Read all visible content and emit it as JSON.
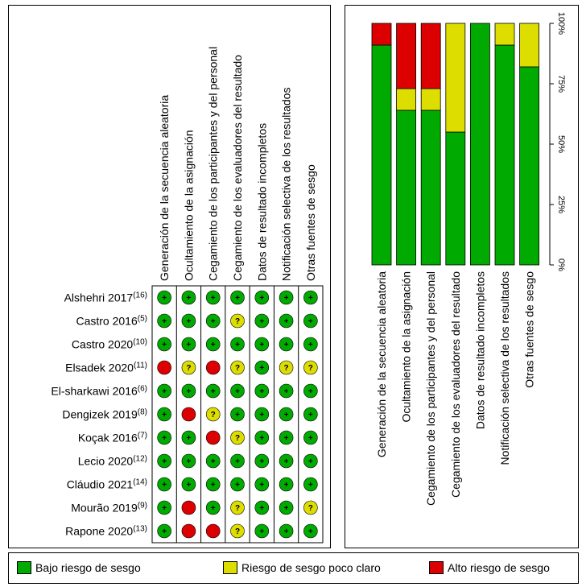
{
  "chart_data": [
    {
      "type": "table",
      "columns": [
        "Generación de la secuencia aleatoria",
        "Ocultamiento de la asignación",
        "Cegamiento de los participantes y del personal",
        "Cegamiento de los evaluadores del resultado",
        "Datos de resultado incompletos",
        "Notificación selectiva de los resultados",
        "Otras fuentes de sesgo"
      ],
      "rows": [
        {
          "study": "Alshehri 2017",
          "ref": "(16)",
          "ratings": [
            "low",
            "low",
            "low",
            "low",
            "low",
            "low",
            "low"
          ]
        },
        {
          "study": "Castro 2016",
          "ref": "(5)",
          "ratings": [
            "low",
            "low",
            "low",
            "unclear",
            "low",
            "low",
            "low"
          ]
        },
        {
          "study": "Castro 2020",
          "ref": "(10)",
          "ratings": [
            "low",
            "low",
            "low",
            "low",
            "low",
            "low",
            "low"
          ]
        },
        {
          "study": "Elsadek 2020",
          "ref": "(11)",
          "ratings": [
            "high",
            "unclear",
            "high",
            "unclear",
            "low",
            "unclear",
            "unclear"
          ]
        },
        {
          "study": "El-sharkawi 2016",
          "ref": "(6)",
          "ratings": [
            "low",
            "low",
            "low",
            "low",
            "low",
            "low",
            "low"
          ]
        },
        {
          "study": "Dengizek 2019",
          "ref": "(8)",
          "ratings": [
            "low",
            "high",
            "unclear",
            "low",
            "low",
            "low",
            "low"
          ]
        },
        {
          "study": "Koçak 2016",
          "ref": "(7)",
          "ratings": [
            "low",
            "low",
            "high",
            "unclear",
            "low",
            "low",
            "low"
          ]
        },
        {
          "study": "Lecio 2020",
          "ref": "(12)",
          "ratings": [
            "low",
            "low",
            "low",
            "low",
            "low",
            "low",
            "low"
          ]
        },
        {
          "study": "Cláudio 2021",
          "ref": "(14)",
          "ratings": [
            "low",
            "low",
            "low",
            "low",
            "low",
            "low",
            "low"
          ]
        },
        {
          "study": "Mourão 2019",
          "ref": "(9)",
          "ratings": [
            "low",
            "high",
            "low",
            "unclear",
            "low",
            "low",
            "unclear"
          ]
        },
        {
          "study": "Rapone 2020",
          "ref": "(13)",
          "ratings": [
            "low",
            "high",
            "high",
            "unclear",
            "low",
            "low",
            "low"
          ]
        }
      ],
      "symbols": {
        "low": "+",
        "unclear": "?",
        "high": ""
      }
    },
    {
      "type": "bar",
      "stacked": true,
      "categories": [
        "Generación de la secuencia aleatoria",
        "Ocultamiento de la asignación",
        "Cegamiento de los participantes y del personal",
        "Cegamiento de los evaluadores del resultado",
        "Datos de resultado incompletos",
        "Notificación selectiva de los resultados",
        "Otras fuentes de sesgo"
      ],
      "series": [
        {
          "name": "Bajo riesgo de sesgo",
          "values": [
            91,
            64,
            64,
            55,
            100,
            91,
            82
          ]
        },
        {
          "name": "Riesgo de sesgo poco claro",
          "values": [
            0,
            9,
            9,
            45,
            0,
            9,
            18
          ]
        },
        {
          "name": "Alto riesgo de sesgo",
          "values": [
            9,
            27,
            27,
            0,
            0,
            0,
            0
          ]
        }
      ],
      "ylim": [
        0,
        100
      ],
      "yticks": [
        "0%",
        "25%",
        "50%",
        "75%",
        "100%"
      ],
      "orientation": "vertical"
    }
  ],
  "legend": [
    {
      "key": "low",
      "label": "Bajo riesgo de sesgo"
    },
    {
      "key": "unclear",
      "label": "Riesgo de sesgo poco claro"
    },
    {
      "key": "high",
      "label": "Alto riesgo de sesgo"
    }
  ],
  "colors": {
    "low": "#00aa00",
    "unclear": "#dddd00",
    "high": "#dd0000"
  }
}
